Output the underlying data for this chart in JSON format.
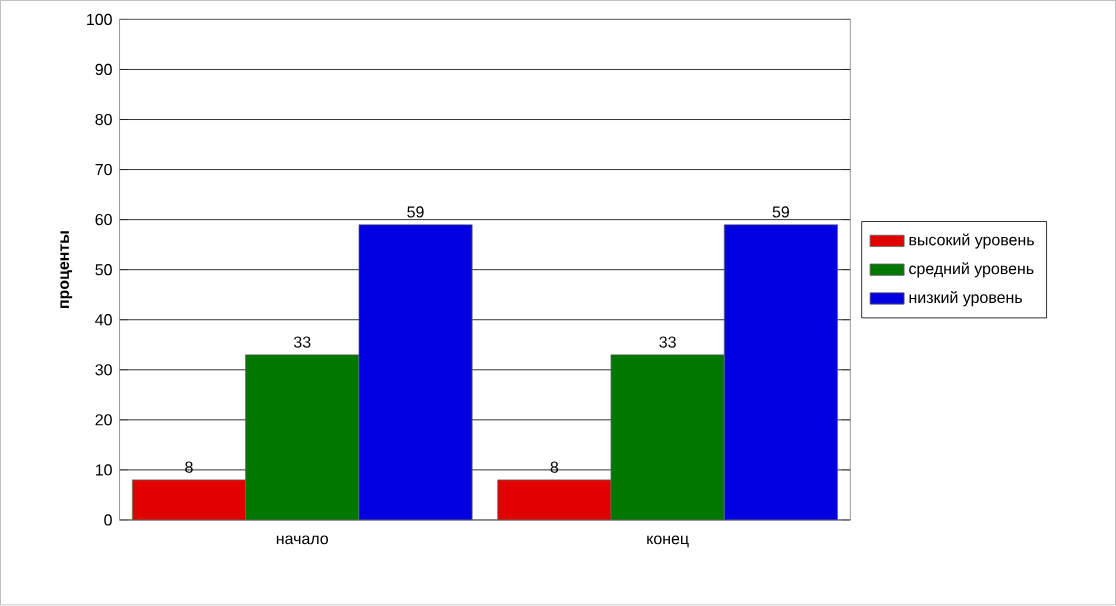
{
  "chart_data": {
    "type": "bar",
    "ylabel": "проценты",
    "categories": [
      "начало",
      "конец"
    ],
    "series": [
      {
        "name": "высокий уровень",
        "color": "#e00000",
        "values": [
          8,
          8
        ]
      },
      {
        "name": "средний уровень",
        "color": "#007800",
        "values": [
          33,
          33
        ]
      },
      {
        "name": "низкий уровень",
        "color": "#0000e0",
        "values": [
          59,
          59
        ]
      }
    ],
    "ylim": [
      0,
      100
    ],
    "yticks": [
      0,
      10,
      20,
      30,
      40,
      50,
      60,
      70,
      80,
      90,
      100
    ],
    "grid": "y",
    "legend": "right",
    "data_labels": true
  }
}
